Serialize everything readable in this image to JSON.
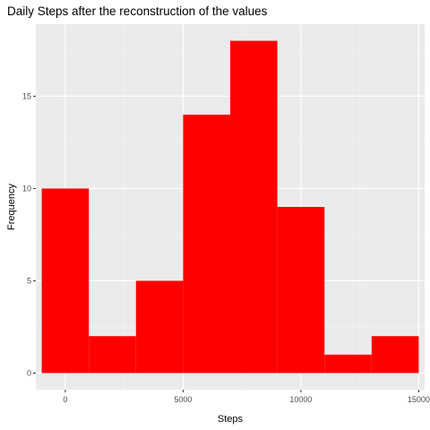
{
  "chart_data": {
    "type": "bar",
    "title": "Daily Steps after the reconstruction of the values",
    "xlabel": "Steps",
    "ylabel": "Frequency",
    "xlim": [
      -1250,
      15250
    ],
    "ylim": [
      -0.9,
      18.9
    ],
    "x_ticks": [
      0,
      5000,
      10000,
      15000
    ],
    "x_tick_labels": [
      "0",
      "5000",
      "10000",
      "15000"
    ],
    "y_ticks": [
      0,
      5,
      10,
      15
    ],
    "y_tick_labels": [
      "0",
      "5",
      "10",
      "15"
    ],
    "bins": [
      {
        "start": -1000,
        "end": 1000,
        "count": 10
      },
      {
        "start": 1000,
        "end": 3000,
        "count": 2
      },
      {
        "start": 3000,
        "end": 5000,
        "count": 5
      },
      {
        "start": 5000,
        "end": 7000,
        "count": 14
      },
      {
        "start": 7000,
        "end": 9000,
        "count": 18
      },
      {
        "start": 9000,
        "end": 11000,
        "count": 9
      },
      {
        "start": 11000,
        "end": 13000,
        "count": 1
      },
      {
        "start": 13000,
        "end": 15000,
        "count": 2
      }
    ],
    "grid": true,
    "legend": "none",
    "colors": {
      "bar": "#ff0000",
      "panel": "#ebebeb",
      "grid_major": "#ffffff",
      "grid_minor": "#f5f5f5",
      "tick": "#333333"
    }
  }
}
